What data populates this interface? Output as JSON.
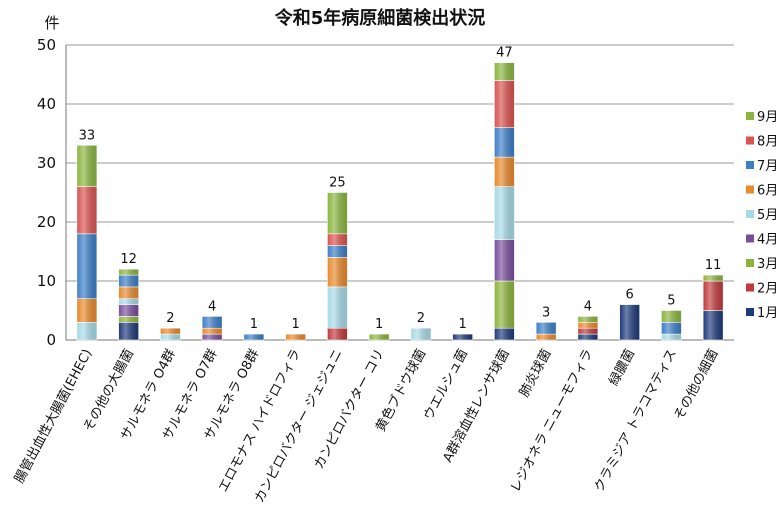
{
  "chart_data": {
    "type": "bar",
    "stacked": true,
    "title": "令和5年病原細菌検出状況",
    "ylabel": "件",
    "xlabel": "",
    "ylim": [
      0,
      50
    ],
    "yticks": [
      0,
      10,
      20,
      30,
      40,
      50
    ],
    "grid": true,
    "legend_position": "right",
    "categories": [
      "腸管出血性大腸菌(EHEC)",
      "その他の大腸菌",
      "サルモネラ O4群",
      "サルモネラ O7群",
      "サルモネラ O8群",
      "エロモナス ハイドロフィラ",
      "カンピロバクター ジェジュニ",
      "カンピロバクター コリ",
      "黄色ブドウ球菌",
      "ウエルシュ菌",
      "A群溶血性レンサ球菌",
      "肺炎球菌",
      "レジオネラ ニューモフィラ",
      "緑膿菌",
      "クラミジア トラコマティス",
      "その他の細菌"
    ],
    "totals": [
      33,
      12,
      2,
      4,
      1,
      1,
      25,
      1,
      2,
      1,
      47,
      3,
      4,
      6,
      5,
      11
    ],
    "series": [
      {
        "name": "1月",
        "color": "#1f3a7a",
        "values": [
          0,
          3,
          0,
          0,
          0,
          0,
          0,
          0,
          0,
          1,
          2,
          0,
          1,
          6,
          0,
          5
        ]
      },
      {
        "name": "2月",
        "color": "#c0393b",
        "values": [
          0,
          0,
          0,
          0,
          0,
          0,
          2,
          0,
          0,
          0,
          0,
          0,
          1,
          0,
          0,
          5
        ]
      },
      {
        "name": "3月",
        "color": "#8cb43c",
        "values": [
          0,
          1,
          0,
          0,
          0,
          0,
          0,
          1,
          0,
          0,
          8,
          0,
          0,
          0,
          0,
          0
        ]
      },
      {
        "name": "4月",
        "color": "#7a4e9c",
        "values": [
          0,
          2,
          0,
          1,
          0,
          0,
          0,
          0,
          0,
          0,
          7,
          0,
          0,
          0,
          0,
          0
        ]
      },
      {
        "name": "5月",
        "color": "#a6d9e6",
        "values": [
          3,
          1,
          1,
          0,
          0,
          0,
          7,
          0,
          2,
          0,
          9,
          0,
          0,
          0,
          1,
          0
        ]
      },
      {
        "name": "6月",
        "color": "#e8892b",
        "values": [
          4,
          2,
          1,
          1,
          0,
          1,
          5,
          0,
          0,
          0,
          5,
          1,
          1,
          0,
          0,
          0
        ]
      },
      {
        "name": "7月",
        "color": "#3c7ec8",
        "values": [
          11,
          2,
          0,
          2,
          1,
          0,
          2,
          0,
          0,
          0,
          5,
          2,
          0,
          0,
          2,
          0
        ]
      },
      {
        "name": "8月",
        "color": "#d9534f",
        "values": [
          8,
          0,
          0,
          0,
          0,
          0,
          2,
          0,
          0,
          0,
          8,
          0,
          0,
          0,
          0,
          0
        ]
      },
      {
        "name": "9月",
        "color": "#8ab53f",
        "values": [
          7,
          1,
          0,
          0,
          0,
          0,
          7,
          0,
          0,
          0,
          3,
          0,
          1,
          0,
          2,
          1
        ]
      }
    ]
  }
}
